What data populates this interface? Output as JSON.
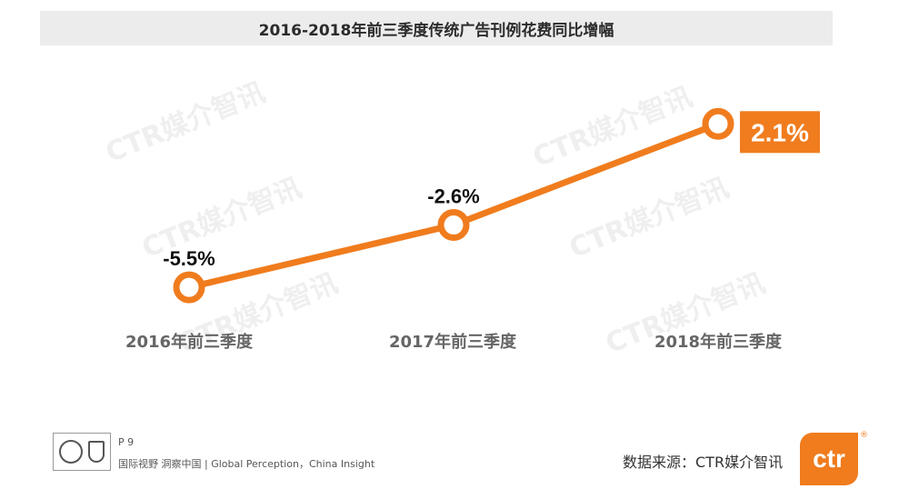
{
  "title": "2016-2018年前三季度传统广告刊例花费同比增幅",
  "watermark_text": "CTR媒介智讯",
  "chart_data": {
    "type": "line",
    "categories": [
      "2016年前三季度",
      "2017年前三季度",
      "2018年前三季度"
    ],
    "series": [
      {
        "values": [
          -5.5,
          -2.6,
          2.1
        ]
      }
    ],
    "data_labels": [
      "-5.5%",
      "-2.6%",
      "2.1%"
    ],
    "highlight_last_label": true,
    "ylim": [
      -6,
      3
    ],
    "grid": false,
    "colors": {
      "line": "#f07c1e",
      "marker_fill": "#ffffff",
      "highlight_label_bg": "#f07c1e",
      "highlight_label_text": "#ffffff"
    }
  },
  "footer": {
    "page": "P 9",
    "slogan": "国际视野 洞察中国 | Global Perception，China Insight",
    "source": "数据来源：CTR媒介智讯",
    "logo_text": "ctr",
    "logo_reg": "®"
  }
}
